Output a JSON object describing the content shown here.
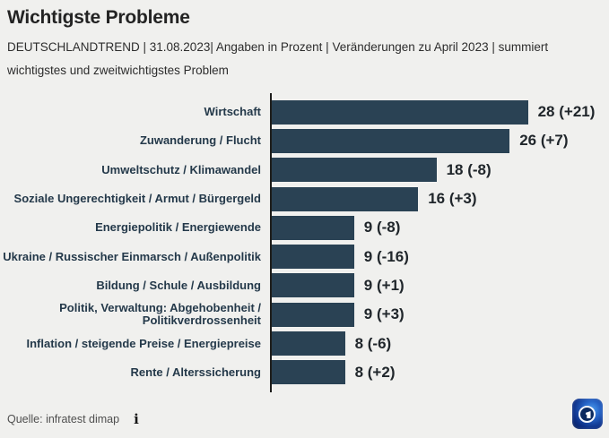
{
  "title": "Wichtigste Probleme",
  "subtitle_line1": "DEUTSCHLANDTREND | 31.08.2023| Angaben in Prozent | Veränderungen zu April 2023 | summiert",
  "subtitle_line2": "wichtigstes und zweitwichtigstes Problem",
  "chart_data": {
    "type": "bar",
    "orientation": "horizontal",
    "categories": [
      "Wirtschaft",
      "Zuwanderung / Flucht",
      "Umweltschutz / Klimawandel",
      "Soziale Ungerechtigkeit / Armut / Bürgergeld",
      "Energiepolitik / Energiewende",
      "Ukraine / Russischer Einmarsch / Außenpolitik",
      "Bildung / Schule / Ausbildung",
      "Politik, Verwaltung: Abgehobenheit / Politikverdrossenheit",
      "Inflation / steigende Preise / Energiepreise",
      "Rente / Alterssicherung"
    ],
    "values": [
      28,
      26,
      18,
      16,
      9,
      9,
      9,
      9,
      8,
      8
    ],
    "changes": [
      "+21",
      "+7",
      "-8",
      "+3",
      "-8",
      "-16",
      "+1",
      "+3",
      "-6",
      "+2"
    ],
    "value_labels": [
      "28 (+21)",
      "26 (+7)",
      "18 (-8)",
      "16 (+3)",
      "9 (-8)",
      "9 (-16)",
      "9 (+1)",
      "9 (+3)",
      "8 (-6)",
      "8 (+2)"
    ],
    "xlim": [
      0,
      28
    ],
    "grid": false,
    "legend": "none",
    "bar_color": "#2a4254"
  },
  "footer": {
    "source": "Quelle: infratest dimap",
    "info_icon": "i"
  },
  "logo": {
    "name": "ARD DeutschlandTrend logo"
  },
  "colors": {
    "background": "#f0f0ee",
    "bar": "#2a4254",
    "axis": "#1d1d1b",
    "label_text": "#24394a",
    "value_text": "#20262b",
    "logo_blue": "#0d2f86"
  }
}
